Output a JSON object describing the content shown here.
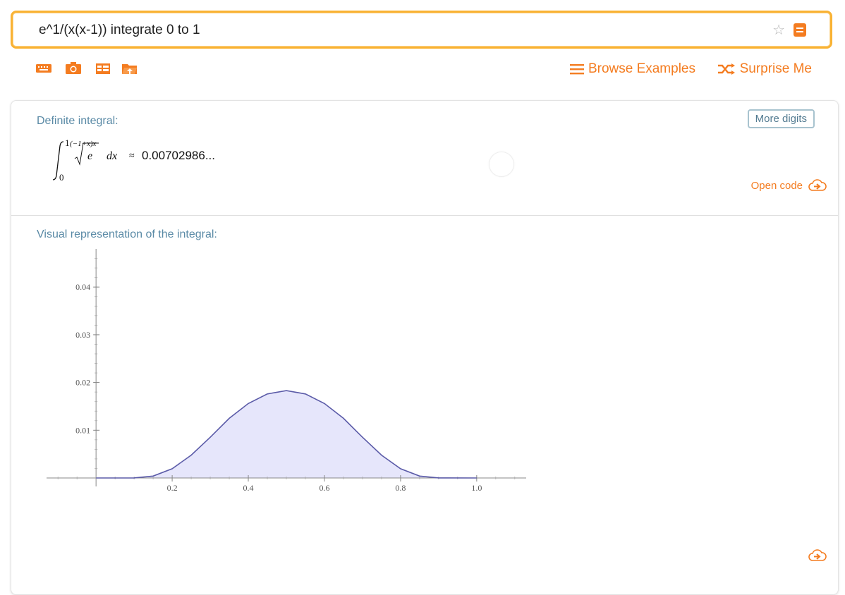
{
  "search": {
    "value": "e^1/(x(x-1)) integrate 0 to 1"
  },
  "toolbar": {
    "icons": [
      "keyboard-icon",
      "camera-icon",
      "table-icon",
      "folder-upload-icon"
    ]
  },
  "nav": {
    "browse_label": "Browse Examples",
    "surprise_label": "Surprise Me"
  },
  "pods": {
    "definite_integral": {
      "title": "Definite integral:",
      "more_digits_label": "More digits",
      "lower_limit": "0",
      "upper_limit": "1",
      "root_index": "(−1+x)x",
      "radicand": "e",
      "differential": "dx",
      "approx_symbol": "≈",
      "result": "0.00702986...",
      "open_code_label": "Open code"
    },
    "visual": {
      "title": "Visual representation of the integral:"
    }
  },
  "colors": {
    "accent": "#f47c20",
    "search_border": "#f9b233",
    "pod_title": "#5a8aa6",
    "curve": "#5b5ba8",
    "fill": "#e6e6fb"
  },
  "chart_data": {
    "type": "area",
    "function": "e^(1/(x(x-1)))",
    "xlim": [
      -0.13,
      1.13
    ],
    "ylim": [
      0,
      0.048
    ],
    "xticks": [
      "0.2",
      "0.4",
      "0.6",
      "0.8",
      "1.0"
    ],
    "yticks": [
      "0.01",
      "0.02",
      "0.03",
      "0.04"
    ],
    "x": [
      0,
      0.1,
      0.15,
      0.2,
      0.25,
      0.3,
      0.35,
      0.4,
      0.45,
      0.5,
      0.55,
      0.6,
      0.65,
      0.7,
      0.75,
      0.8,
      0.85,
      0.9,
      1.0
    ],
    "y": [
      0,
      1.52e-05,
      0.000392,
      0.00193,
      0.00479,
      0.00854,
      0.0125,
      0.0156,
      0.0176,
      0.0183,
      0.0176,
      0.0156,
      0.0125,
      0.00854,
      0.00479,
      0.00193,
      0.000392,
      1.52e-05,
      0
    ],
    "fill_range": [
      0,
      1
    ]
  }
}
